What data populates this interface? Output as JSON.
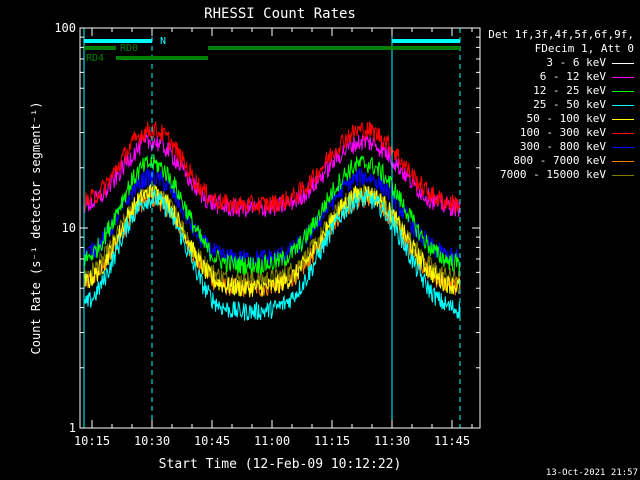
{
  "chart_data": {
    "type": "line",
    "title": "RHESSI Count Rates",
    "xlabel": "Start Time (12-Feb-09 10:12:22)",
    "ylabel": "Count Rate (s⁻¹ detector segment⁻¹)",
    "xlim": [
      "10:12",
      "11:52"
    ],
    "ylim": [
      1,
      100
    ],
    "yscale": "log",
    "x_tick_labels": [
      "10:15",
      "10:30",
      "10:45",
      "11:00",
      "11:15",
      "11:30",
      "11:45"
    ],
    "y_tick_labels": [
      "1",
      "10",
      "100"
    ],
    "legend_header": [
      "Det 1f,3f,4f,5f,6f,9f,",
      "FDecim 1, Att 0"
    ],
    "series": [
      {
        "name": "3 - 6 keV",
        "color": "#ffffff",
        "base": 0,
        "peak": 0
      },
      {
        "name": "6 - 12 keV",
        "color": "#ff00ff",
        "base": 12.5,
        "peak": 27
      },
      {
        "name": "12 - 25 keV",
        "color": "#00ff00",
        "base": 6.5,
        "peak": 21
      },
      {
        "name": "25 - 50 keV",
        "color": "#00ffff",
        "base": 3.8,
        "peak": 14
      },
      {
        "name": "50 - 100 keV",
        "color": "#ffff00",
        "base": 5.0,
        "peak": 15
      },
      {
        "name": "100 - 300 keV",
        "color": "#ff0000",
        "base": 13,
        "peak": 31
      },
      {
        "name": "300 - 800 keV",
        "color": "#0000ff",
        "base": 7.0,
        "peak": 18
      },
      {
        "name": "800 - 7000 keV",
        "color": "#ff8000",
        "base": 5.0,
        "peak": 14
      },
      {
        "name": "7000 - 15000 keV",
        "color": "#808000",
        "base": 5.5,
        "peak": 15
      }
    ],
    "peaks": [
      "10:30",
      "11:23"
    ],
    "flags": [
      {
        "label": "N",
        "color": "#00ffff",
        "intervals": [
          [
            "10:13",
            "10:30"
          ],
          [
            "11:30",
            "11:47"
          ]
        ]
      },
      {
        "label": "RD0",
        "color": "#008000",
        "intervals": [
          [
            "10:13",
            "10:21"
          ],
          [
            "10:44",
            "11:47"
          ]
        ]
      },
      {
        "label": "RD4",
        "color": "#008000",
        "intervals": [
          [
            "10:21",
            "10:44"
          ]
        ]
      }
    ],
    "vlines_solid": [
      "10:13",
      "11:30"
    ],
    "vlines_dashed": [
      "10:30",
      "11:47"
    ]
  },
  "timestamp": "13-Oct-2021 21:57"
}
